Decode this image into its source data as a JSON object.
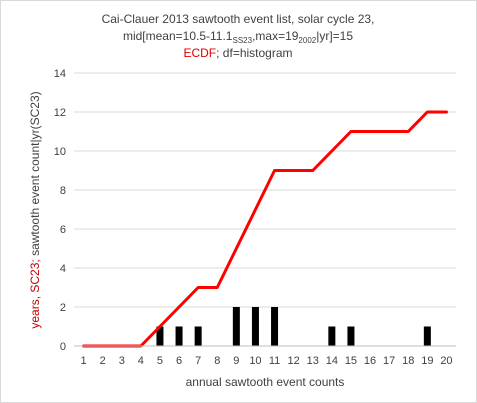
{
  "chart_data": {
    "type": "bar",
    "title_line1": "Cai-Clauer 2013 sawtooth event list, solar cycle 23,",
    "title_line2_prefix": "mid[mean=10.5-11.1",
    "title_line2_sub1": "SS23",
    "title_line2_mid": ",max=19",
    "title_line2_sub2": "2002",
    "title_line2_suffix": "|yr]=15",
    "title_line3_red": "ECDF",
    "title_line3_rest": ";  df=histogram",
    "xlabel": "annual sawtooth event counts",
    "ylabel_red": "years, SC23;",
    "ylabel_rest": " sawtooth event count|yr(SC23)",
    "xlim": [
      0.5,
      20.5
    ],
    "ylim": [
      0,
      14
    ],
    "yticks": [
      0,
      2,
      4,
      6,
      8,
      10,
      12,
      14
    ],
    "categories": [
      "1",
      "2",
      "3",
      "4",
      "5",
      "6",
      "7",
      "8",
      "9",
      "10",
      "11",
      "12",
      "13",
      "14",
      "15",
      "16",
      "17",
      "18",
      "19",
      "20"
    ],
    "grid": "horizontal",
    "series": [
      {
        "type": "bar",
        "color": "#000000",
        "x": [
          1,
          2,
          3,
          4,
          5,
          6,
          7,
          8,
          9,
          10,
          11,
          12,
          13,
          14,
          15,
          16,
          17,
          18,
          19,
          20
        ],
        "values": [
          0,
          0,
          0,
          0,
          1,
          1,
          1,
          0,
          2,
          2,
          2,
          0,
          0,
          1,
          1,
          0,
          0,
          0,
          1,
          0
        ]
      },
      {
        "name": "ECDF",
        "type": "line",
        "color": "#ff0000",
        "x": [
          1,
          2,
          3,
          4,
          5,
          6,
          7,
          8,
          9,
          10,
          11,
          12,
          13,
          14,
          15,
          16,
          17,
          18,
          19,
          20
        ],
        "values": [
          0,
          0,
          0,
          0,
          1,
          2,
          3,
          3,
          5,
          7,
          9,
          9,
          9,
          10,
          11,
          11,
          11,
          11,
          12,
          12
        ]
      }
    ]
  }
}
